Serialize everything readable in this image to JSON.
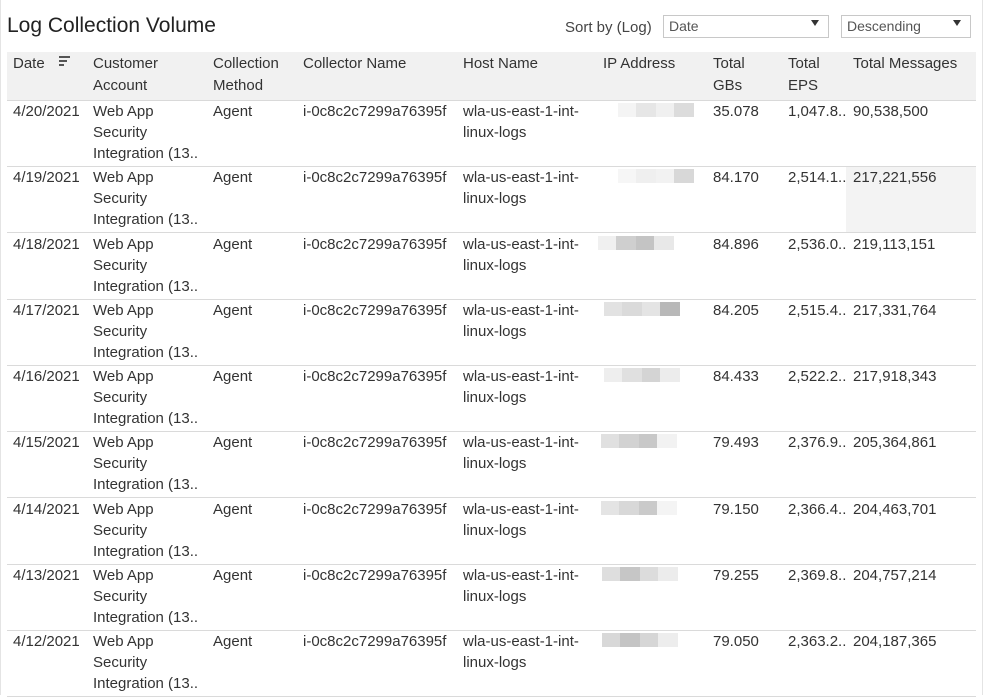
{
  "title": "Log Collection Volume",
  "sort": {
    "label": "Sort by (Log)",
    "value": "Date",
    "order": "Descending"
  },
  "columns": [
    "Date",
    "Customer\nAccount",
    "Collection\nMethod",
    "Collector Name",
    "Host Name",
    "IP Address",
    "Total\nGBs",
    "Total\nEPS",
    "Total Messages"
  ],
  "rows": [
    {
      "date": "4/20/2021",
      "account": "Web App\nSecurity\nIntegration (13..",
      "method": "Agent",
      "collector": "i-0c8c2c7299a76395f",
      "host": "wla-us-east-1-int-\nlinux-logs",
      "gbs": "35.078",
      "eps": "1,047.8..",
      "messages": "90,538,500"
    },
    {
      "date": "4/19/2021",
      "account": "Web App\nSecurity\nIntegration (13..",
      "method": "Agent",
      "collector": "i-0c8c2c7299a76395f",
      "host": "wla-us-east-1-int-\nlinux-logs",
      "gbs": "84.170",
      "eps": "2,514.1..",
      "messages": "217,221,556"
    },
    {
      "date": "4/18/2021",
      "account": "Web App\nSecurity\nIntegration (13..",
      "method": "Agent",
      "collector": "i-0c8c2c7299a76395f",
      "host": "wla-us-east-1-int-\nlinux-logs",
      "gbs": "84.896",
      "eps": "2,536.0..",
      "messages": "219,113,151"
    },
    {
      "date": "4/17/2021",
      "account": "Web App\nSecurity\nIntegration (13..",
      "method": "Agent",
      "collector": "i-0c8c2c7299a76395f",
      "host": "wla-us-east-1-int-\nlinux-logs",
      "gbs": "84.205",
      "eps": "2,515.4..",
      "messages": "217,331,764"
    },
    {
      "date": "4/16/2021",
      "account": "Web App\nSecurity\nIntegration (13..",
      "method": "Agent",
      "collector": "i-0c8c2c7299a76395f",
      "host": "wla-us-east-1-int-\nlinux-logs",
      "gbs": "84.433",
      "eps": "2,522.2..",
      "messages": "217,918,343"
    },
    {
      "date": "4/15/2021",
      "account": "Web App\nSecurity\nIntegration (13..",
      "method": "Agent",
      "collector": "i-0c8c2c7299a76395f",
      "host": "wla-us-east-1-int-\nlinux-logs",
      "gbs": "79.493",
      "eps": "2,376.9..",
      "messages": "205,364,861"
    },
    {
      "date": "4/14/2021",
      "account": "Web App\nSecurity\nIntegration (13..",
      "method": "Agent",
      "collector": "i-0c8c2c7299a76395f",
      "host": "wla-us-east-1-int-\nlinux-logs",
      "gbs": "79.150",
      "eps": "2,366.4..",
      "messages": "204,463,701"
    },
    {
      "date": "4/13/2021",
      "account": "Web App\nSecurity\nIntegration (13..",
      "method": "Agent",
      "collector": "i-0c8c2c7299a76395f",
      "host": "wla-us-east-1-int-\nlinux-logs",
      "gbs": "79.255",
      "eps": "2,369.8..",
      "messages": "204,757,214"
    },
    {
      "date": "4/12/2021",
      "account": "Web App\nSecurity\nIntegration (13..",
      "method": "Agent",
      "collector": "i-0c8c2c7299a76395f",
      "host": "wla-us-east-1-int-\nlinux-logs",
      "gbs": "79.050",
      "eps": "2,363.2..",
      "messages": "204,187,365"
    }
  ],
  "ip_blur_shades": [
    [
      "#f4f4f4",
      "#e6e6e6",
      "#f0f0f0",
      "#dcdcdc"
    ],
    [
      "#f6f6f6",
      "#efefef",
      "#f2f2f2",
      "#d8d8d8"
    ],
    [
      "#f0f0f0",
      "#cfcfcf",
      "#c4c4c4",
      "#e8e8e8"
    ],
    [
      "#e2e2e2",
      "#dadada",
      "#e4e4e4",
      "#b8b8b8"
    ],
    [
      "#eeeeee",
      "#e0e0e0",
      "#d4d4d4",
      "#ececec"
    ],
    [
      "#e0e0e0",
      "#d2d2d2",
      "#c8c8c8",
      "#f2f2f2"
    ],
    [
      "#e4e4e4",
      "#d8d8d8",
      "#cacaca",
      "#f4f4f4"
    ],
    [
      "#dedede",
      "#c6c6c6",
      "#dcdcdc",
      "#ececec"
    ],
    [
      "#d8d8d8",
      "#c4c4c4",
      "#d6d6d6",
      "#ededed"
    ]
  ],
  "colors": {
    "header_bg": "#f1f1f1",
    "row_border": "#dadada",
    "highlight_cell": "#f3f3f3"
  }
}
